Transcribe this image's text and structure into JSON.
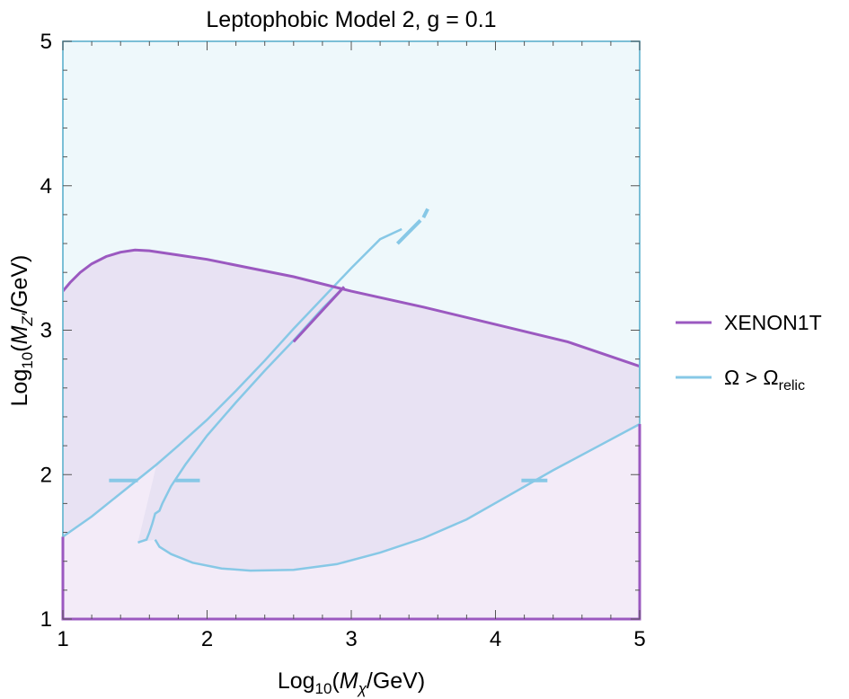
{
  "chart_data": {
    "type": "line",
    "title": "Leptophobic Model 2, g = 0.1",
    "xlabel": {
      "prefix": "Log",
      "sub": "10",
      "open": "(",
      "var": "M",
      "var_sub": "χ",
      "unit": "/GeV)"
    },
    "ylabel": {
      "prefix": "Log",
      "sub": "10",
      "open": "(",
      "var": "M",
      "var_sub": "Z'",
      "unit": "/GeV)"
    },
    "xlim": [
      1,
      5
    ],
    "ylim": [
      1,
      5
    ],
    "x_ticks": [
      "1",
      "2",
      "3",
      "4",
      "5"
    ],
    "y_ticks": [
      "1",
      "2",
      "3",
      "4",
      "5"
    ],
    "grid": false,
    "legend_position": "right",
    "colors": {
      "xenon": "#9b59c0",
      "relic": "#87c8e6",
      "excluded_fill": "#e8e2f3",
      "relic_fill": "#eef8fb",
      "low_fill": "#f3ebf8",
      "frame": "#7bbfd6"
    },
    "series": [
      {
        "name": "XENON1T",
        "points": [
          [
            1.0,
            3.27
          ],
          [
            1.05,
            3.33
          ],
          [
            1.12,
            3.4
          ],
          [
            1.2,
            3.46
          ],
          [
            1.3,
            3.51
          ],
          [
            1.4,
            3.54
          ],
          [
            1.5,
            3.555
          ],
          [
            1.6,
            3.55
          ],
          [
            1.8,
            3.52
          ],
          [
            2.0,
            3.49
          ],
          [
            2.3,
            3.43
          ],
          [
            2.6,
            3.37
          ],
          [
            3.0,
            3.27
          ],
          [
            3.5,
            3.16
          ],
          [
            4.0,
            3.04
          ],
          [
            4.5,
            2.92
          ],
          [
            5.0,
            2.75
          ]
        ]
      },
      {
        "name": "Ω > Ω",
        "name_sub": "relic",
        "outer": [
          [
            1.0,
            1.57
          ],
          [
            1.2,
            1.71
          ],
          [
            1.4,
            1.87
          ],
          [
            1.65,
            2.07
          ],
          [
            1.8,
            2.2
          ],
          [
            2.0,
            2.38
          ],
          [
            2.2,
            2.58
          ],
          [
            2.4,
            2.79
          ],
          [
            2.6,
            3.01
          ],
          [
            2.8,
            3.22
          ],
          [
            3.0,
            3.43
          ],
          [
            3.2,
            3.63
          ],
          [
            3.35,
            3.7
          ]
        ],
        "inner": [
          [
            2.95,
            3.3
          ],
          [
            2.8,
            3.15
          ],
          [
            2.6,
            2.93
          ],
          [
            2.4,
            2.72
          ],
          [
            2.2,
            2.5
          ],
          [
            2.0,
            2.27
          ],
          [
            1.85,
            2.07
          ],
          [
            1.75,
            1.92
          ],
          [
            1.69,
            1.8
          ],
          [
            1.67,
            1.75
          ],
          [
            1.64,
            1.73
          ],
          [
            1.62,
            1.66
          ],
          [
            1.6,
            1.6
          ],
          [
            1.58,
            1.55
          ],
          [
            1.52,
            1.53
          ]
        ],
        "lower": [
          [
            1.64,
            1.55
          ],
          [
            1.67,
            1.5
          ],
          [
            1.75,
            1.45
          ],
          [
            1.9,
            1.39
          ],
          [
            2.1,
            1.35
          ],
          [
            2.3,
            1.335
          ],
          [
            2.6,
            1.34
          ],
          [
            2.9,
            1.38
          ],
          [
            3.2,
            1.46
          ],
          [
            3.5,
            1.56
          ],
          [
            3.8,
            1.69
          ],
          [
            4.1,
            1.86
          ],
          [
            4.4,
            2.03
          ],
          [
            4.7,
            2.19
          ],
          [
            5.0,
            2.35
          ]
        ],
        "dashes": [
          [
            [
              1.32,
              1.96
            ],
            [
              1.52,
              1.96
            ]
          ],
          [
            [
              1.78,
              1.96
            ],
            [
              1.95,
              1.96
            ]
          ],
          [
            [
              4.18,
              1.96
            ],
            [
              4.36,
              1.96
            ]
          ],
          [
            [
              3.32,
              3.6
            ],
            [
              3.48,
              3.76
            ]
          ],
          [
            [
              3.5,
              3.78
            ],
            [
              3.53,
              3.84
            ]
          ]
        ]
      }
    ]
  }
}
